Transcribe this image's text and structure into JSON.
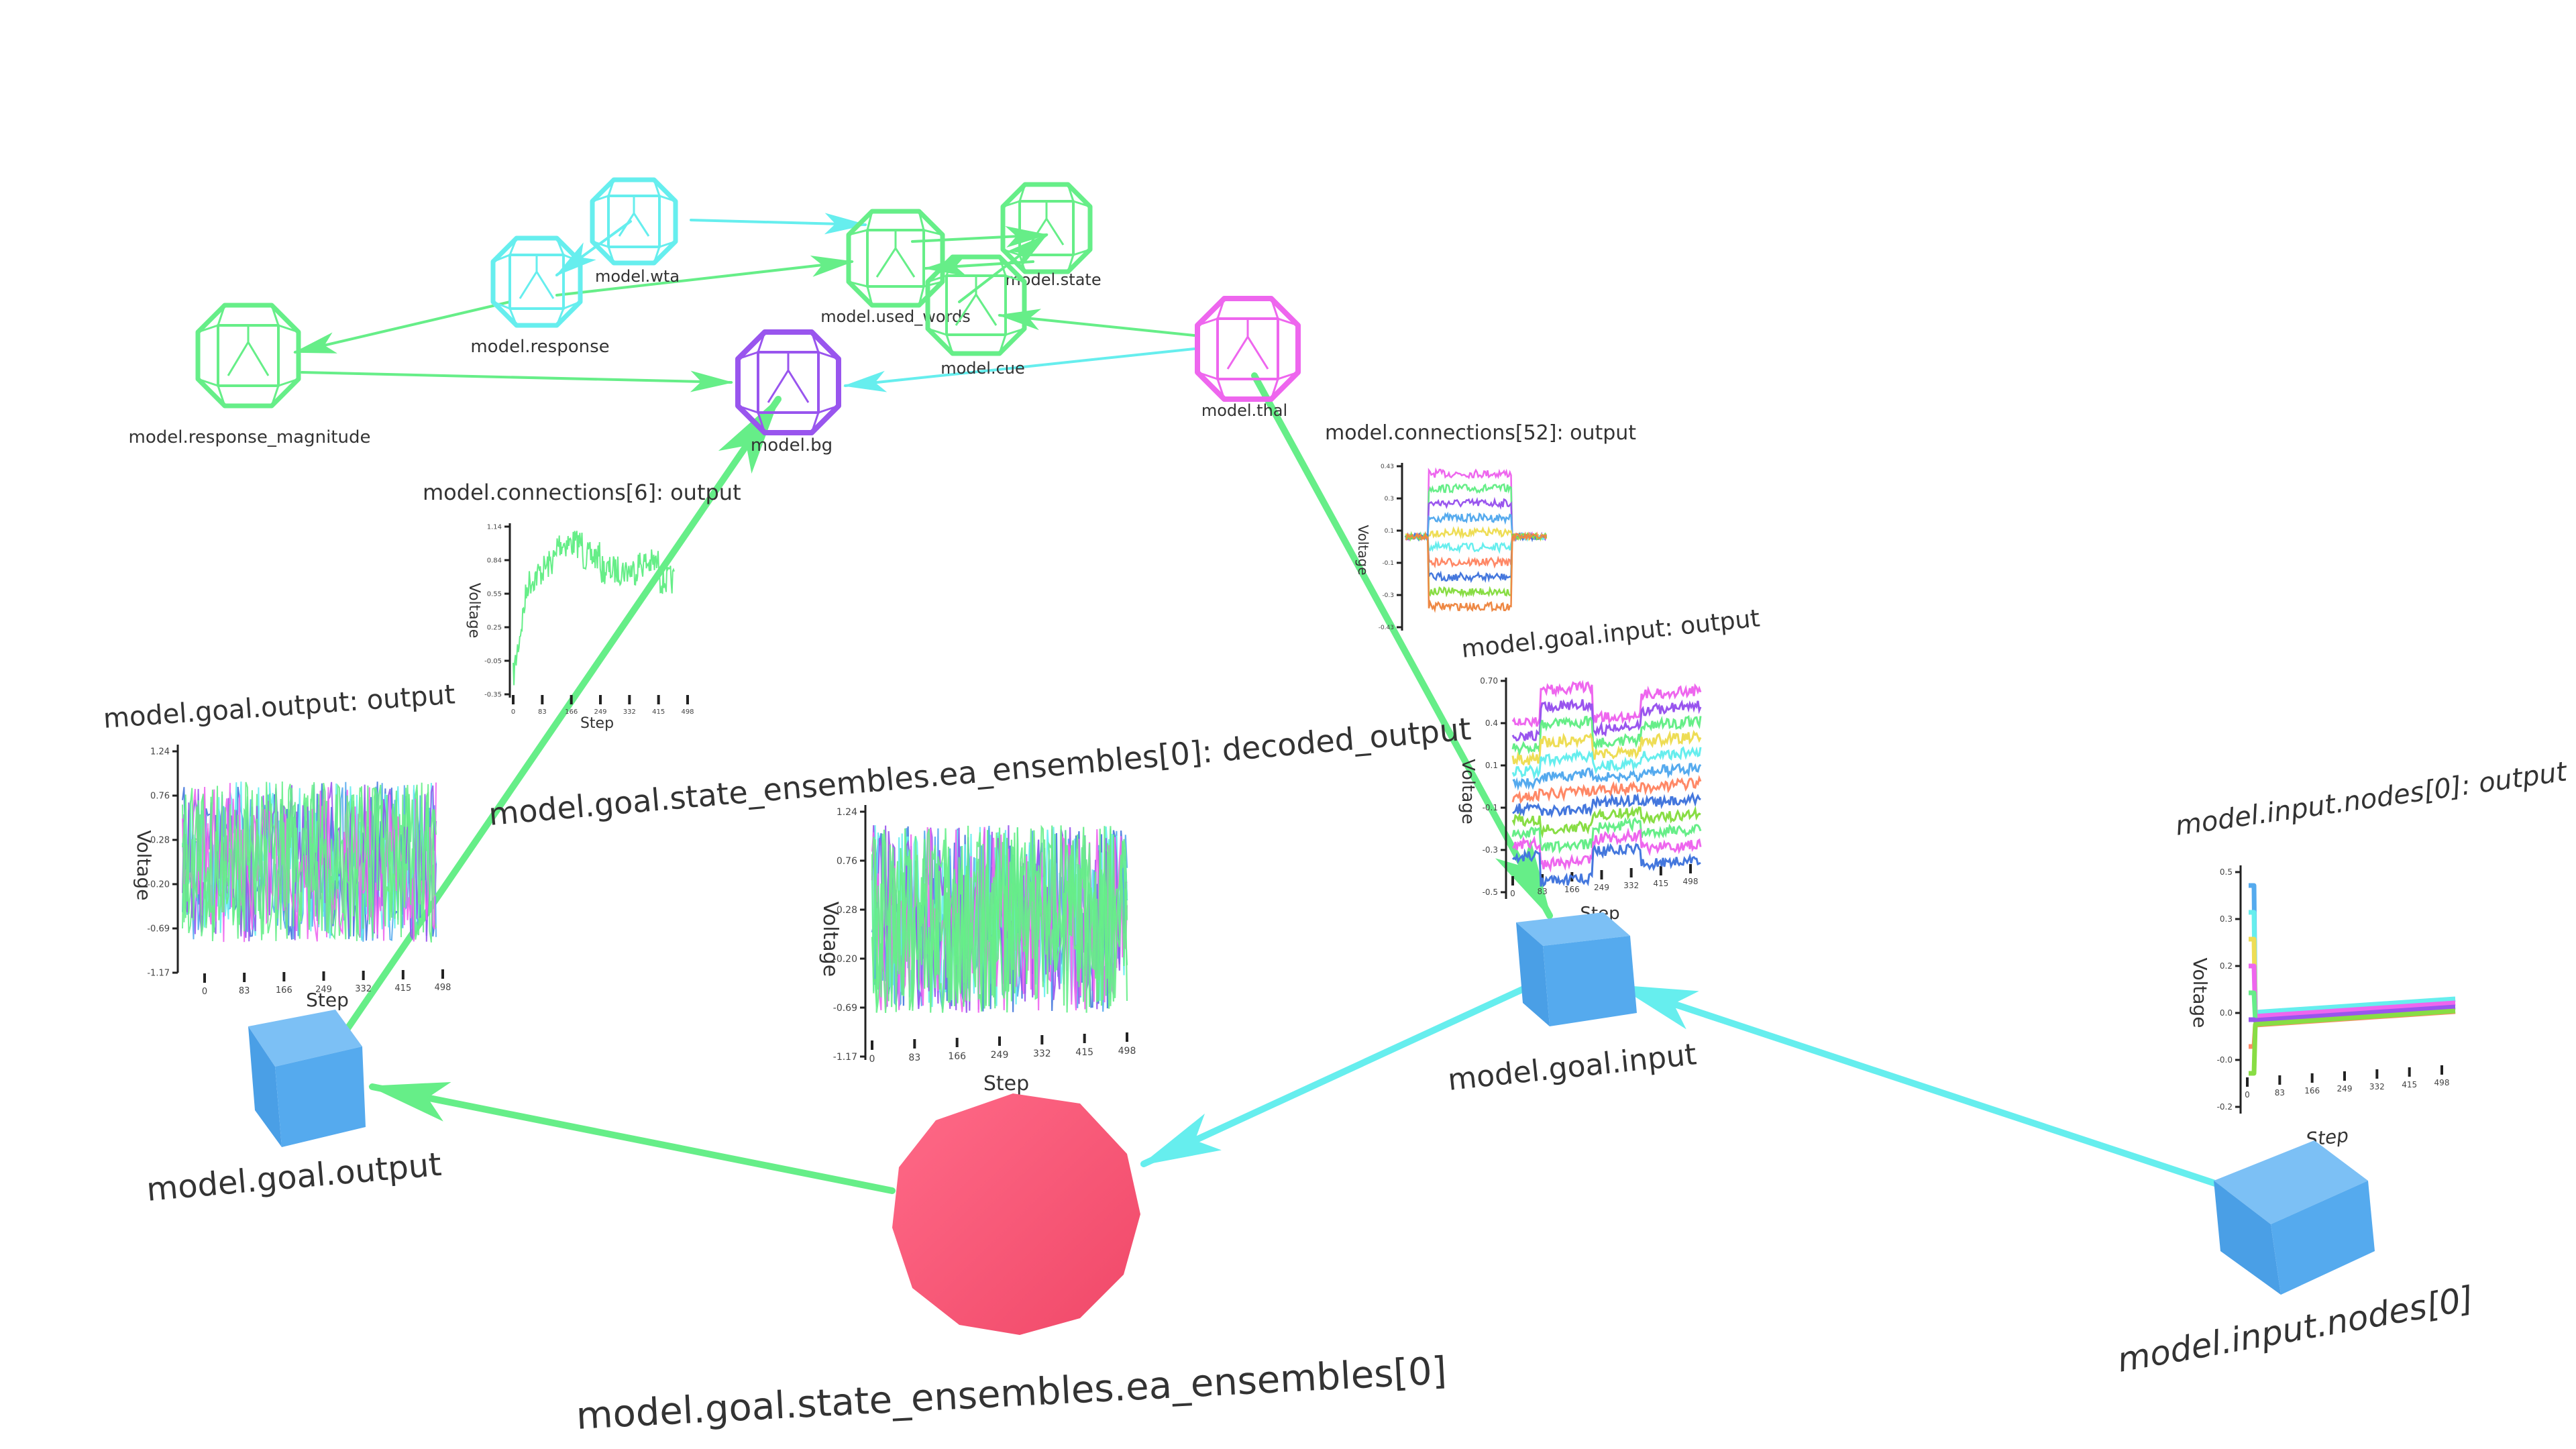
{
  "colors": {
    "green_node": "#66ee88",
    "cyan_node": "#66eeee",
    "purple_node": "#9955ee",
    "magenta_node": "#ee66ee",
    "cube_blue": "#55aaee",
    "ensemble_red": "#ff5577",
    "green_link": "#66ee88",
    "cyan_link": "#66eeee"
  },
  "nodes": {
    "response_magnitude": "model.response_magnitude",
    "response": "model.response",
    "wta": "model.wta",
    "used_words": "model.used_words",
    "state": "model.state",
    "cue": "model.cue",
    "bg": "model.bg",
    "thal": "model.thal",
    "goal_output": "model.goal.output",
    "goal_input": "model.goal.input",
    "ea_ensemble": "model.goal.state_ensembles.ea_ensembles[0]",
    "input_node": "model.input.nodes[0]"
  },
  "plots": {
    "conn6": {
      "title": "model.connections[6]: output",
      "ylabel": "Voltage",
      "xlabel": "Step",
      "yticks": [
        "1.14",
        "0.84",
        "0.55",
        "0.25",
        "-0.05",
        "-0.35"
      ],
      "xticks": [
        "0",
        "83",
        "166",
        "249",
        "332",
        "415",
        "498"
      ]
    },
    "conn52": {
      "title": "model.connections[52]: output",
      "ylabel": "Voltage",
      "xlabel": "Step",
      "yticks": [
        "0.43",
        "0.3",
        "0.1",
        "-0.1",
        "-0.3",
        "-0.43"
      ],
      "xticks": [
        "0",
        "83",
        "166",
        "249",
        "332",
        "415",
        "498"
      ]
    },
    "goal_output": {
      "title": "model.goal.output: output",
      "ylabel": "Voltage",
      "xlabel": "Step",
      "yticks": [
        "1.24",
        "0.76",
        "0.28",
        "-0.20",
        "-0.69",
        "-1.17"
      ],
      "xticks": [
        "0",
        "83",
        "166",
        "249",
        "332",
        "415",
        "498"
      ]
    },
    "decoded": {
      "title": "model.goal.state_ensembles.ea_ensembles[0]: decoded_output",
      "ylabel": "Voltage",
      "xlabel": "Step",
      "yticks": [
        "1.24",
        "0.76",
        "0.28",
        "-0.20",
        "-0.69",
        "-1.17"
      ],
      "xticks": [
        "0",
        "83",
        "166",
        "249",
        "332",
        "415",
        "498"
      ]
    },
    "goal_input": {
      "title": "model.goal.input: output",
      "ylabel": "Voltage",
      "xlabel": "Step",
      "yticks": [
        "0.70",
        "0.4",
        "0.1",
        "-0.1",
        "-0.3",
        "-0.5"
      ],
      "xticks": [
        "0",
        "83",
        "166",
        "249",
        "332",
        "415",
        "498"
      ]
    },
    "input_nodes": {
      "title": "model.input.nodes[0]: output",
      "ylabel": "Voltage",
      "xlabel": "Step",
      "yticks": [
        "0.5",
        "0.3",
        "0.2",
        "0.0",
        "-0.0",
        "-0.2"
      ],
      "xticks": [
        "0",
        "83",
        "166",
        "249",
        "332",
        "415",
        "498"
      ]
    }
  }
}
